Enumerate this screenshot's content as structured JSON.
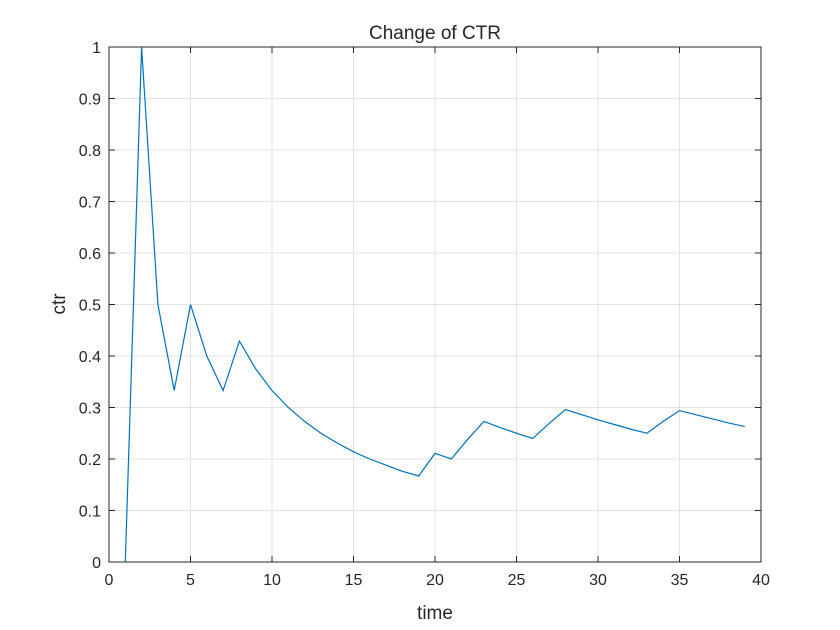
{
  "chart_data": {
    "type": "line",
    "title": "Change of CTR",
    "xlabel": "time",
    "ylabel": "ctr",
    "xlim": [
      0,
      40
    ],
    "ylim": [
      0,
      1
    ],
    "grid": true,
    "xticks": [
      0,
      5,
      10,
      15,
      20,
      25,
      30,
      35,
      40
    ],
    "yticks": [
      0,
      0.1,
      0.2,
      0.3,
      0.4,
      0.5,
      0.6,
      0.7,
      0.8,
      0.9,
      1
    ],
    "xtick_labels": [
      "0",
      "5",
      "10",
      "15",
      "20",
      "25",
      "30",
      "35",
      "40"
    ],
    "ytick_labels": [
      "0",
      "0.1",
      "0.2",
      "0.3",
      "0.4",
      "0.5",
      "0.6",
      "0.7",
      "0.8",
      "0.9",
      "1"
    ],
    "line_color": "#0072bd",
    "series": [
      {
        "x": [
          1,
          2,
          3,
          4,
          5,
          6,
          7,
          8,
          9,
          10,
          11,
          12,
          13,
          14,
          15,
          16,
          17,
          18,
          19,
          20,
          21,
          22,
          23,
          24,
          25,
          26,
          27,
          28,
          29,
          30,
          31,
          32,
          33,
          34,
          35,
          36,
          37,
          38,
          39
        ],
        "values": [
          0,
          1,
          0.5,
          0.333,
          0.5,
          0.4,
          0.333,
          0.429,
          0.375,
          0.333,
          0.3,
          0.273,
          0.25,
          0.231,
          0.214,
          0.2,
          0.188,
          0.176,
          0.167,
          0.211,
          0.2,
          0.238,
          0.273,
          0.261,
          0.25,
          0.24,
          0.269,
          0.296,
          0.286,
          0.276,
          0.267,
          0.258,
          0.25,
          0.273,
          0.294,
          0.286,
          0.278,
          0.27,
          0.263
        ]
      }
    ]
  }
}
